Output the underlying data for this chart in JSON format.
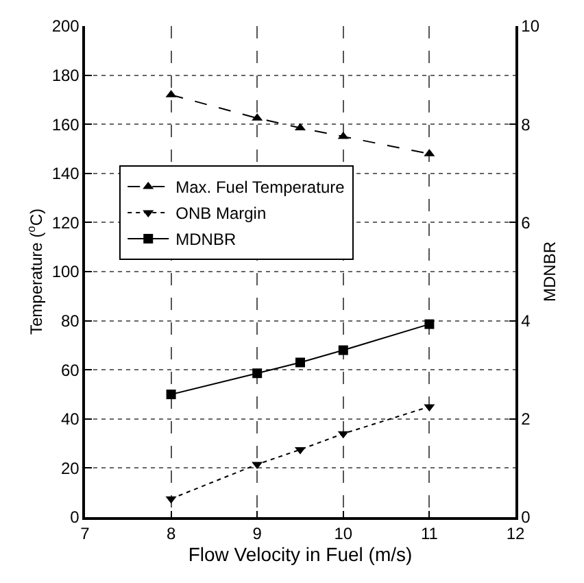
{
  "chart_data": {
    "type": "line",
    "xlabel": "Flow Velocity in Fuel (m/s)",
    "ylabel": "Temperature ($^{o}$C)",
    "y2label": "MDNBR",
    "xlim": [
      7,
      12
    ],
    "xticks": [
      7,
      8,
      9,
      10,
      11,
      12
    ],
    "ylim": [
      0,
      200
    ],
    "yticks": [
      0,
      20,
      40,
      60,
      80,
      100,
      120,
      140,
      160,
      180,
      200
    ],
    "y2lim": [
      0,
      10
    ],
    "y2ticks": [
      0,
      2,
      4,
      6,
      8,
      10
    ],
    "grid": true,
    "legend": "left",
    "series": [
      {
        "name": "Max. Fuel Temperature",
        "color": "#000000",
        "x": [
          8,
          9,
          9.5,
          10,
          11
        ],
        "values": [
          172,
          162.5,
          158.5,
          155,
          148
        ],
        "marker": "triangle",
        "line_style": "dashed"
      },
      {
        "name": "ONB Margin",
        "color": "#000000",
        "x": [
          8,
          9,
          9.5,
          10,
          11
        ],
        "values": [
          7.5,
          21.5,
          27.5,
          34,
          45
        ],
        "marker": "triangle-down",
        "line_style": "dotted"
      },
      {
        "name": "MDNBR",
        "color": "#000000",
        "x": [
          8,
          9,
          9.5,
          10,
          11
        ],
        "values": [
          2.5,
          2.93,
          3.15,
          3.4,
          3.93
        ],
        "marker": "square",
        "line_style": "solid",
        "axis": "y2"
      }
    ]
  }
}
